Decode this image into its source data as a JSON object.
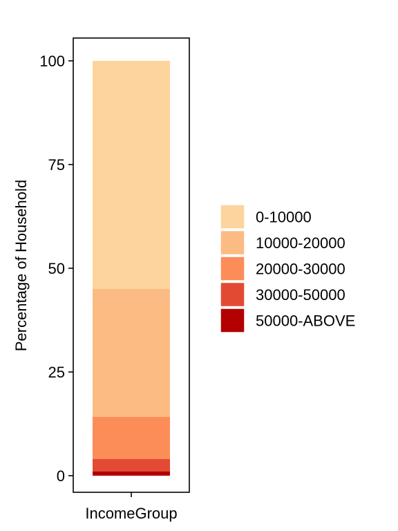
{
  "chart_data": {
    "type": "bar",
    "stacked": true,
    "categories": [
      "IncomeGroup"
    ],
    "series": [
      {
        "name": "0-10000",
        "values": [
          55
        ],
        "color": "#FDD49E"
      },
      {
        "name": "10000-20000",
        "values": [
          30.8
        ],
        "color": "#FDBB84"
      },
      {
        "name": "20000-30000",
        "values": [
          10.2
        ],
        "color": "#FC8D59"
      },
      {
        "name": "30000-50000",
        "values": [
          3
        ],
        "color": "#E34A33"
      },
      {
        "name": "50000-ABOVE",
        "values": [
          1
        ],
        "color": "#B30000"
      }
    ],
    "title": "",
    "xlabel": "",
    "ylabel": "Percentage of Household",
    "ylim": [
      -4,
      105.5
    ],
    "yticks": [
      0,
      25,
      50,
      75,
      100
    ],
    "grid": false,
    "legend": "right"
  }
}
